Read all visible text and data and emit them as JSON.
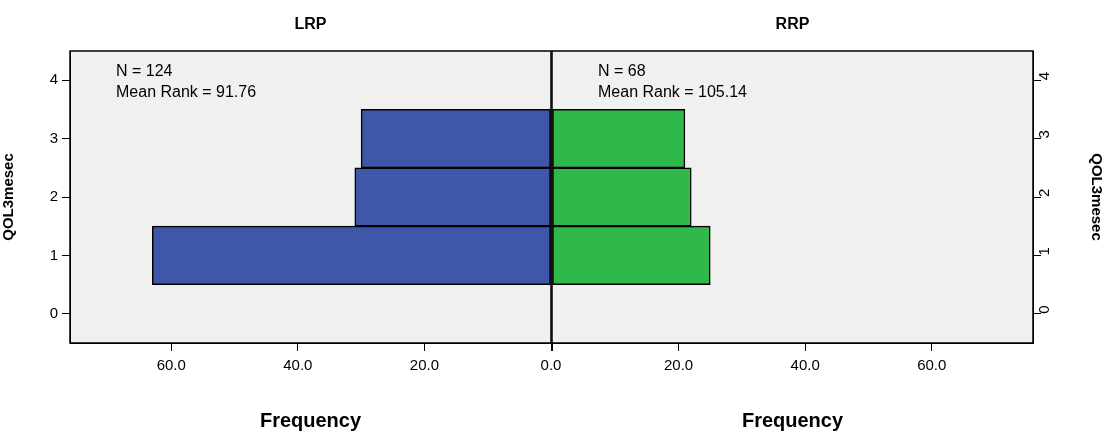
{
  "chart_data": [
    {
      "type": "bar",
      "orientation": "horizontal",
      "title": "LRP",
      "xlabel": "Frequency",
      "ylabel": "QOL3mesec",
      "categories": [
        "4",
        "3",
        "2",
        "1",
        "0"
      ],
      "values": [
        null,
        30,
        31,
        63,
        null
      ],
      "color": "#3f57a9",
      "xlim": [
        76,
        0
      ],
      "xticks": [
        {
          "value": 60,
          "label": "60.0"
        },
        {
          "value": 40,
          "label": "40.0"
        },
        {
          "value": 20,
          "label": "20.0"
        },
        {
          "value": 0,
          "label": "0.0"
        }
      ],
      "annotations": [
        "N = 124",
        "Mean Rank = 91.76"
      ],
      "grid": false,
      "legend": false
    },
    {
      "type": "bar",
      "orientation": "horizontal",
      "title": "RRP",
      "xlabel": "Frequency",
      "ylabel": "QOL3mesec",
      "categories": [
        "4",
        "3",
        "2",
        "1",
        "0"
      ],
      "values": [
        null,
        21,
        22,
        25,
        null
      ],
      "color": "#30b84a",
      "xlim": [
        0,
        76
      ],
      "xticks": [
        {
          "value": 0,
          "label": null
        },
        {
          "value": 20,
          "label": "20.0"
        },
        {
          "value": 40,
          "label": "40.0"
        },
        {
          "value": 60,
          "label": "60.0"
        }
      ],
      "annotations": [
        "N = 68",
        "Mean Rank = 105.14"
      ],
      "grid": false,
      "legend": false
    }
  ]
}
